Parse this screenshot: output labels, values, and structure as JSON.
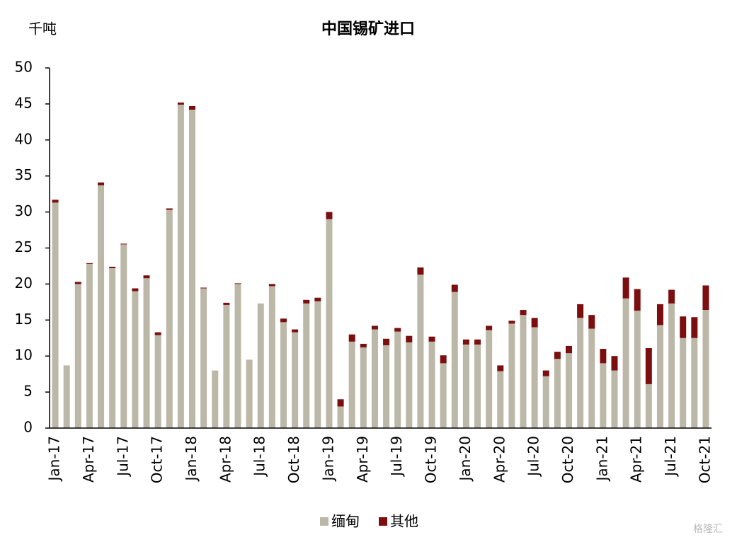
{
  "chart_data": {
    "type": "stacked_bar",
    "title": "中国锡矿进口",
    "y_label": "千吨",
    "categories": [
      "Jan-17",
      null,
      null,
      "Apr-17",
      null,
      null,
      "Jul-17",
      null,
      null,
      "Oct-17",
      null,
      null,
      "Jan-18",
      null,
      null,
      "Apr-18",
      null,
      null,
      "Jul-18",
      null,
      null,
      "Oct-18",
      null,
      null,
      "Jan-19",
      null,
      null,
      "Apr-19",
      null,
      null,
      "Jul-19",
      null,
      null,
      "Oct-19",
      null,
      null,
      "Jan-20",
      null,
      null,
      "Apr-20",
      null,
      null,
      "Jul-20",
      null,
      null,
      "Oct-20",
      null,
      null,
      "Jan-21",
      null,
      null,
      "Apr-21",
      null,
      null,
      "Jul-21",
      null,
      null,
      "Oct-21"
    ],
    "series": [
      {
        "name": "缅甸",
        "color": "#bcb8a8",
        "values": [
          31.3,
          8.7,
          20.0,
          22.8,
          33.7,
          22.2,
          25.5,
          19.0,
          20.8,
          12.9,
          30.3,
          44.9,
          44.2,
          19.4,
          8.0,
          17.1,
          20.0,
          9.5,
          17.3,
          19.7,
          14.7,
          13.3,
          17.3,
          17.6,
          29.0,
          3.0,
          12.0,
          11.2,
          13.7,
          11.5,
          13.4,
          11.9,
          21.3,
          12.0,
          9.0,
          18.9,
          11.6,
          11.6,
          13.6,
          7.9,
          14.5,
          15.7,
          14.0,
          7.2,
          9.6,
          10.4,
          15.3,
          13.8,
          9.0,
          8.0,
          18.0,
          16.3,
          6.1,
          14.3,
          17.3,
          12.5,
          12.5,
          16.4
        ]
      },
      {
        "name": "其他",
        "color": "#7b0f0f",
        "values": [
          0.4,
          0,
          0.3,
          0.1,
          0.4,
          0.2,
          0.1,
          0.4,
          0.4,
          0.4,
          0.2,
          0.3,
          0.5,
          0.1,
          0,
          0.3,
          0.1,
          0,
          0,
          0.3,
          0.5,
          0.4,
          0.5,
          0.5,
          1.0,
          1.0,
          1.0,
          0.5,
          0.5,
          0.9,
          0.5,
          0.9,
          1.0,
          0.7,
          1.1,
          1.0,
          0.7,
          0.7,
          0.6,
          0.8,
          0.4,
          0.7,
          1.3,
          0.8,
          1.0,
          1.0,
          1.9,
          1.9,
          2.0,
          2.0,
          2.9,
          3.0,
          5.0,
          2.9,
          1.9,
          3.0,
          2.9,
          3.4
        ]
      }
    ],
    "ylim": [
      0,
      50
    ],
    "yticks": [
      0,
      5,
      10,
      15,
      20,
      25,
      30,
      35,
      40,
      45,
      50
    ],
    "grid": false,
    "watermark": "格隆汇"
  }
}
